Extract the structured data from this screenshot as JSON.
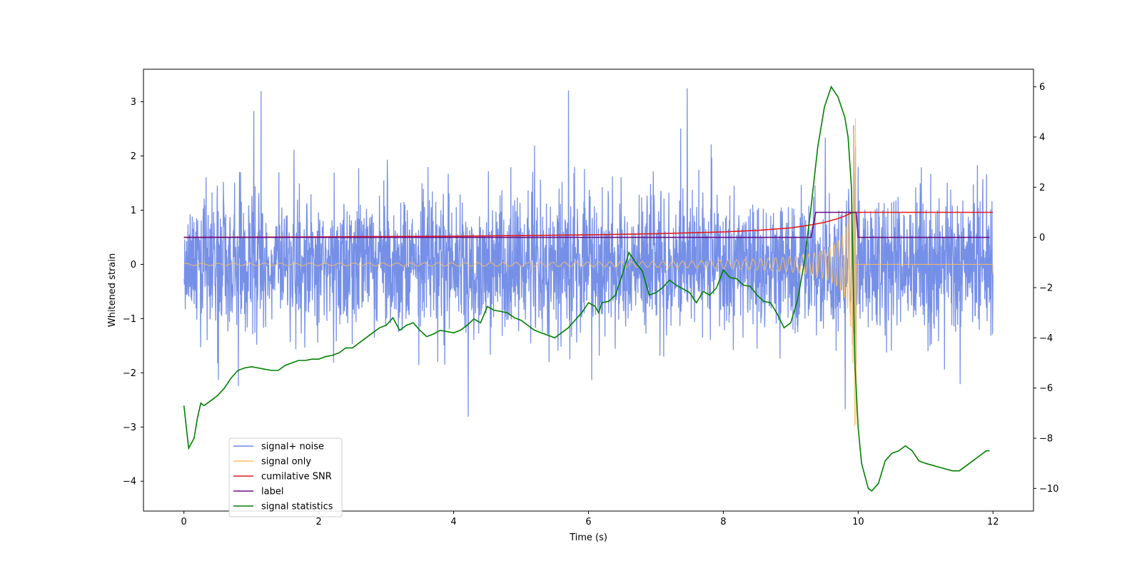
{
  "chart_data": {
    "type": "line",
    "title": "",
    "xlabel": "Time (s)",
    "ylabel": "Whitened strain",
    "y2label": "",
    "xlim": [
      -0.6,
      12.6
    ],
    "ylim": [
      -4.55,
      3.6
    ],
    "y2lim": [
      -10.9,
      6.7
    ],
    "xticks": [
      0,
      2,
      4,
      6,
      8,
      10,
      12
    ],
    "yticks": [
      3,
      2,
      1,
      0,
      -1,
      -2,
      -3,
      -4
    ],
    "y2ticks": [
      6,
      4,
      2,
      0,
      -2,
      -4,
      -6,
      -8,
      -10
    ],
    "grid": false,
    "legend_location": "lower-left",
    "colors": {
      "signal_noise": "#6a87e6",
      "signal_only": "#ffbe5c",
      "cumulative_snr": "#e31a1c",
      "label": "#6a0d83",
      "statistics": "#008000"
    },
    "series": [
      {
        "name": "signal+ noise",
        "axis": "left",
        "description": "whitened strain sampled on 0-12 s, noise amplitude about 1.3, peaks up to 3.2"
      },
      {
        "name": "signal only",
        "axis": "left",
        "description": "chirp from 0 to 9.97 s with amplitude growing from 0.02 to 3.0, flat after merger"
      },
      {
        "name": "cumilative SNR",
        "axis": "right",
        "x": [
          0,
          2,
          4,
          6,
          7,
          8,
          8.5,
          9,
          9.3,
          9.5,
          9.7,
          9.8,
          9.9,
          9.95,
          10,
          12
        ],
        "values": [
          0,
          0.02,
          0.05,
          0.1,
          0.15,
          0.22,
          0.28,
          0.38,
          0.5,
          0.6,
          0.75,
          0.85,
          0.98,
          1.0,
          1.0,
          1.0
        ]
      },
      {
        "name": "label",
        "axis": "right",
        "x": [
          0,
          9.3,
          9.37,
          9.97,
          10.0,
          11.95
        ],
        "values": [
          0,
          0,
          1,
          1,
          0,
          0
        ]
      },
      {
        "name": "signal statistics",
        "axis": "right",
        "x": [
          0,
          0.07,
          0.15,
          0.2,
          0.25,
          0.3,
          0.4,
          0.5,
          0.6,
          0.7,
          0.8,
          0.9,
          1.0,
          1.1,
          1.2,
          1.3,
          1.4,
          1.5,
          1.6,
          1.7,
          1.8,
          1.9,
          2.0,
          2.1,
          2.2,
          2.3,
          2.4,
          2.5,
          2.6,
          2.7,
          2.8,
          2.9,
          3.0,
          3.1,
          3.2,
          3.3,
          3.4,
          3.5,
          3.6,
          3.7,
          3.8,
          3.9,
          4.0,
          4.1,
          4.2,
          4.3,
          4.4,
          4.5,
          4.6,
          4.7,
          4.8,
          4.9,
          5.0,
          5.2,
          5.4,
          5.5,
          5.6,
          5.7,
          5.8,
          5.9,
          6.0,
          6.1,
          6.15,
          6.2,
          6.3,
          6.4,
          6.5,
          6.6,
          6.7,
          6.8,
          6.9,
          7.0,
          7.1,
          7.2,
          7.3,
          7.4,
          7.5,
          7.6,
          7.7,
          7.8,
          7.9,
          8.0,
          8.1,
          8.2,
          8.3,
          8.4,
          8.5,
          8.6,
          8.7,
          8.8,
          8.9,
          9.0,
          9.1,
          9.2,
          9.3,
          9.4,
          9.5,
          9.6,
          9.7,
          9.8,
          9.85,
          9.9,
          9.95,
          10.0,
          10.05,
          10.1,
          10.15,
          10.2,
          10.3,
          10.4,
          10.5,
          10.6,
          10.7,
          10.8,
          10.9,
          11.0,
          11.2,
          11.4,
          11.5,
          11.6,
          11.7,
          11.8,
          11.9,
          11.95
        ],
        "values": [
          -6.7,
          -8.4,
          -8.0,
          -7.2,
          -6.6,
          -6.7,
          -6.5,
          -6.3,
          -6.0,
          -5.6,
          -5.3,
          -5.2,
          -5.15,
          -5.2,
          -5.25,
          -5.3,
          -5.3,
          -5.1,
          -5.0,
          -4.9,
          -4.9,
          -4.85,
          -4.85,
          -4.75,
          -4.7,
          -4.6,
          -4.4,
          -4.4,
          -4.2,
          -4.0,
          -3.8,
          -3.6,
          -3.5,
          -3.2,
          -3.7,
          -3.5,
          -3.4,
          -3.7,
          -3.95,
          -3.85,
          -3.7,
          -3.75,
          -3.8,
          -3.7,
          -3.5,
          -3.25,
          -3.4,
          -2.75,
          -2.9,
          -2.95,
          -3.0,
          -3.2,
          -3.3,
          -3.7,
          -3.9,
          -4.0,
          -3.8,
          -3.6,
          -3.3,
          -3.0,
          -2.6,
          -2.75,
          -3.0,
          -2.6,
          -2.55,
          -2.3,
          -1.5,
          -0.6,
          -1.0,
          -1.35,
          -2.3,
          -2.2,
          -2.0,
          -1.7,
          -1.9,
          -2.05,
          -2.2,
          -2.6,
          -2.15,
          -2.3,
          -2.0,
          -1.3,
          -1.6,
          -1.65,
          -1.9,
          -1.95,
          -2.3,
          -2.55,
          -2.6,
          -3.05,
          -3.6,
          -3.4,
          -2.5,
          -1.0,
          1.2,
          3.6,
          5.2,
          6.0,
          5.6,
          4.8,
          4.0,
          2.0,
          -5.0,
          -7.6,
          -9.0,
          -9.5,
          -10.0,
          -10.1,
          -9.8,
          -8.9,
          -8.6,
          -8.5,
          -8.3,
          -8.5,
          -8.9,
          -9.0,
          -9.15,
          -9.3,
          -9.3,
          -9.1,
          -8.9,
          -8.7,
          -8.5,
          -8.5
        ]
      }
    ],
    "legend": [
      {
        "label": "signal+ noise",
        "color": "#6a87e6"
      },
      {
        "label": "signal only",
        "color": "#ffbe5c"
      },
      {
        "label": "cumilative SNR",
        "color": "#e31a1c"
      },
      {
        "label": "label",
        "color": "#6a0d83"
      },
      {
        "label": "signal statistics",
        "color": "#008000"
      }
    ]
  }
}
